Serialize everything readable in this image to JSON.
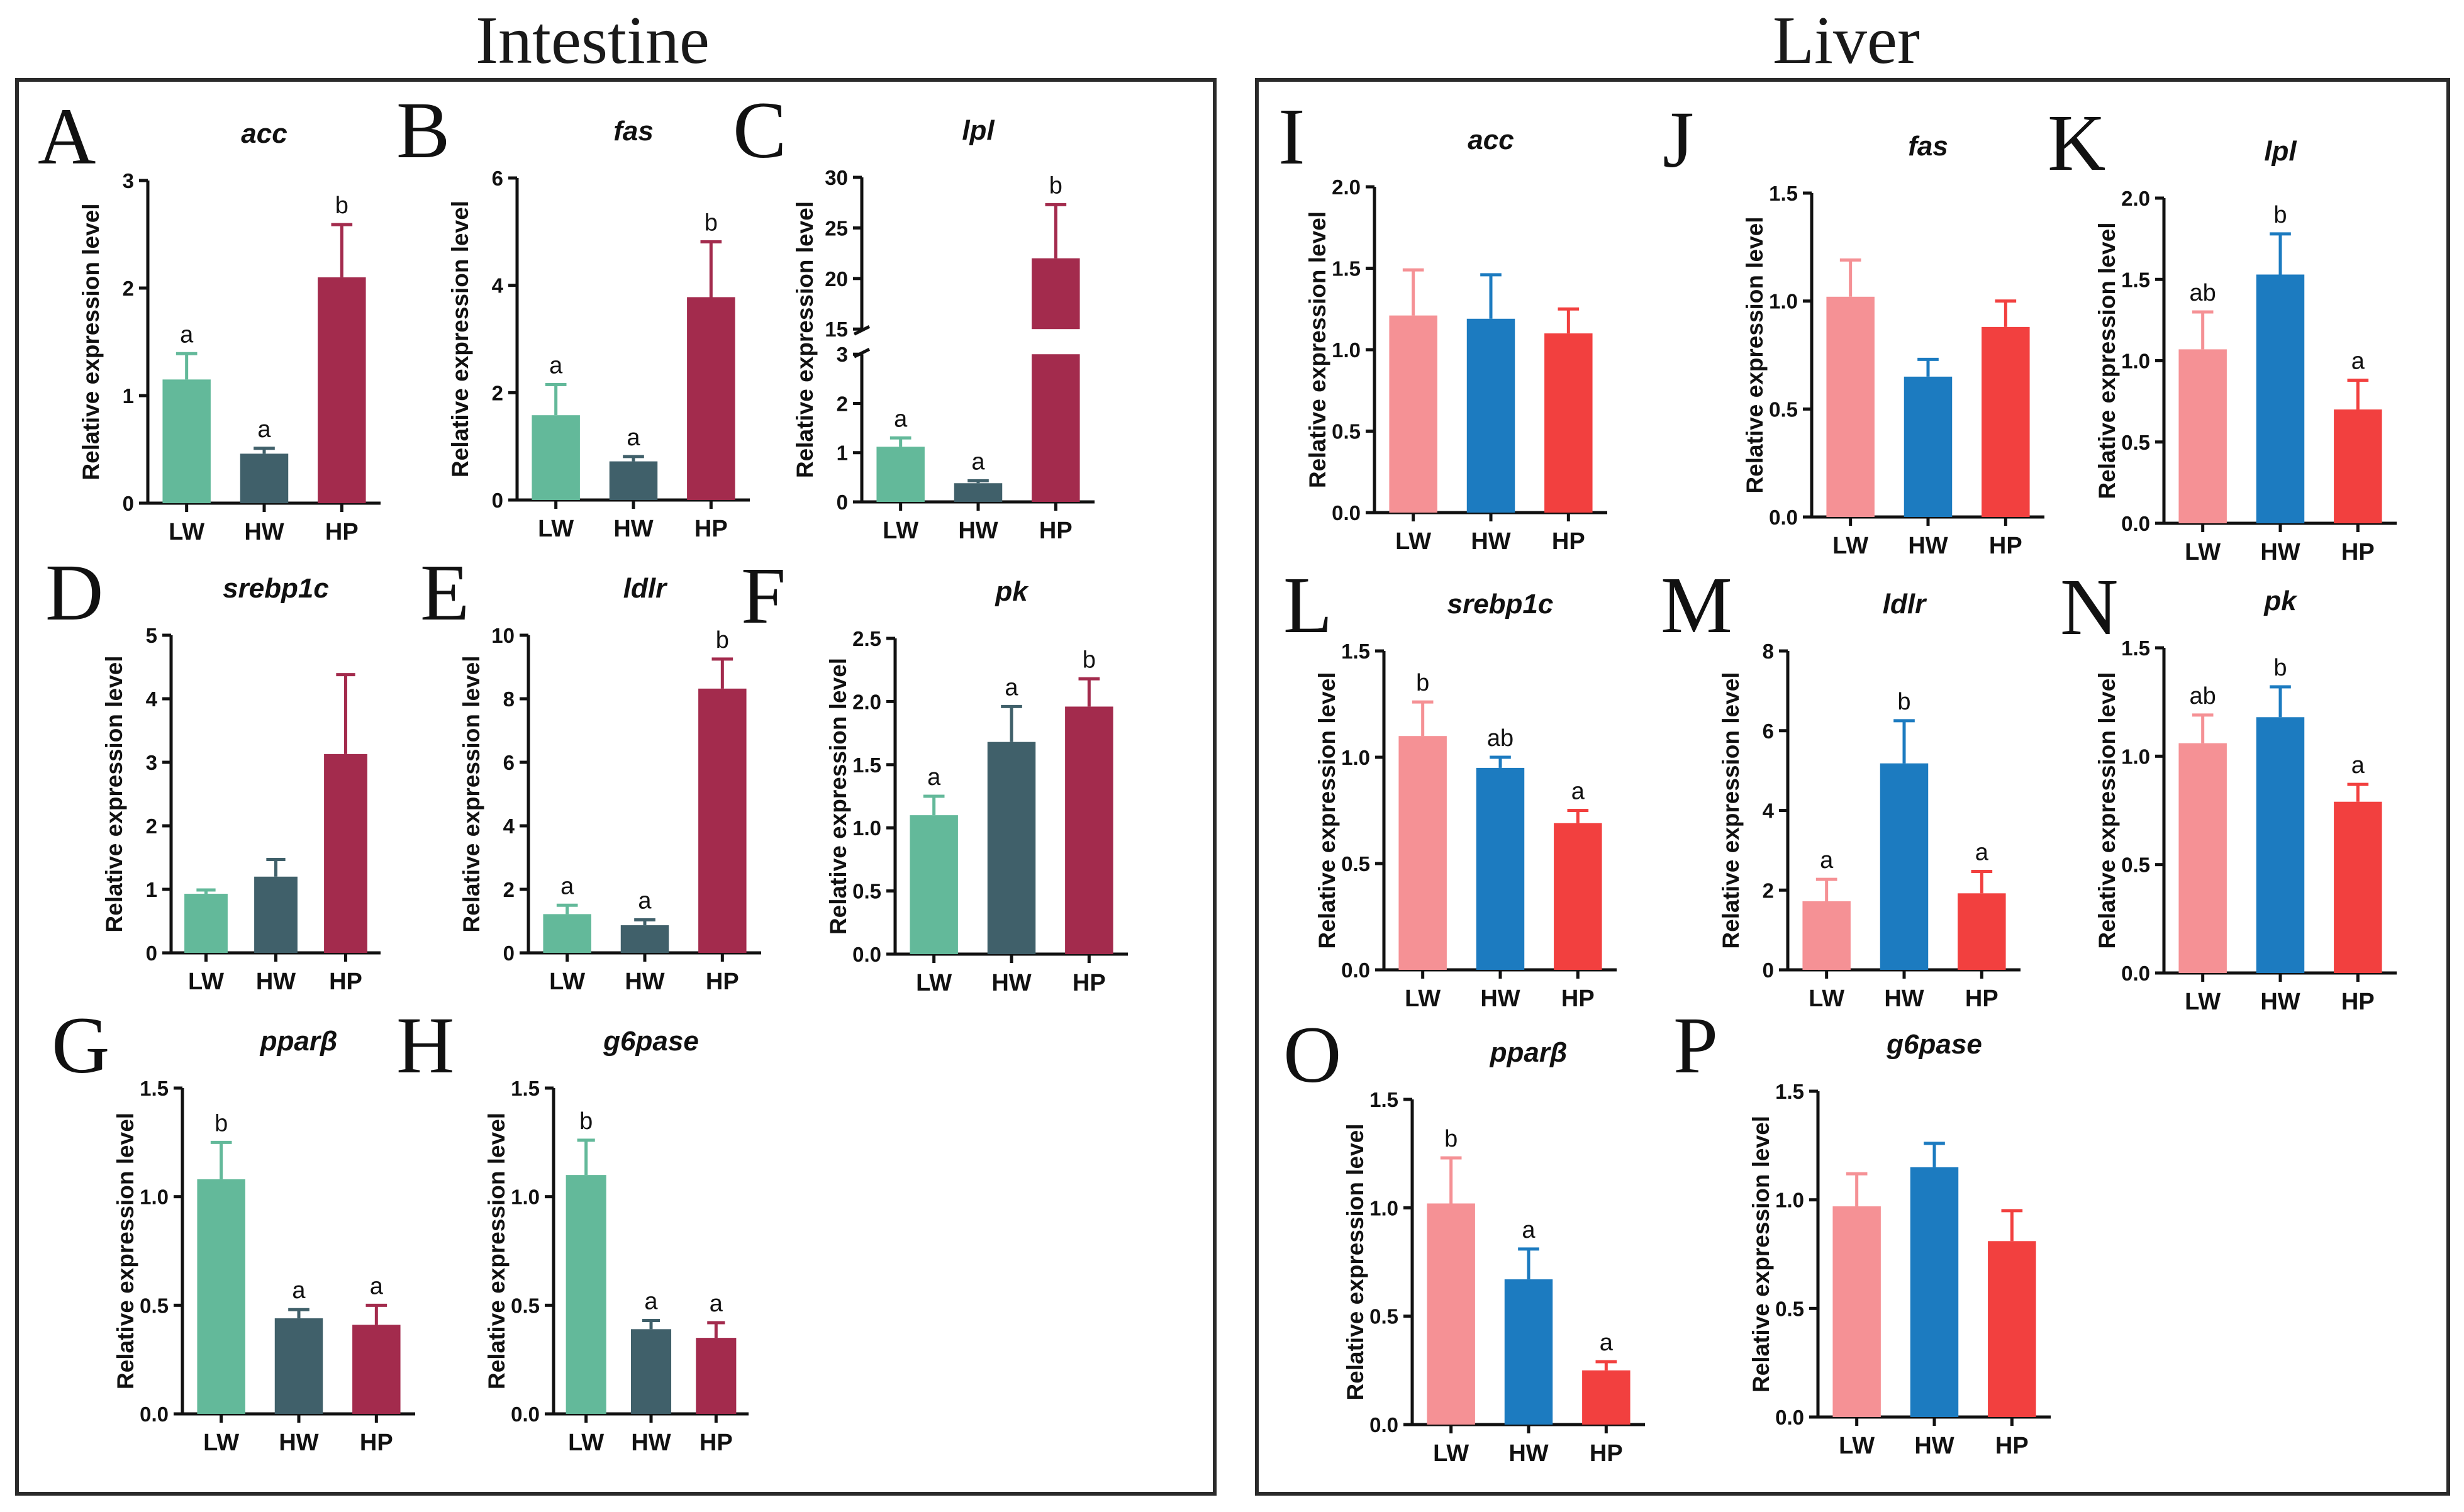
{
  "figure": {
    "sections": [
      {
        "title": "Intestine",
        "colors": [
          "#63b99a",
          "#40606a",
          "#a32b4d"
        ]
      },
      {
        "title": "Liver",
        "colors": [
          "#f59195",
          "#1c7bc0",
          "#f2403f"
        ]
      }
    ]
  },
  "chart_data": [
    {
      "panel": "A",
      "section": "Intestine",
      "type": "bar",
      "title": "acc",
      "ylabel": "Relative expression level",
      "categories": [
        "LW",
        "HW",
        "HP"
      ],
      "values": [
        1.15,
        0.46,
        2.1
      ],
      "errors": [
        0.24,
        0.05,
        0.49
      ],
      "letters": [
        "a",
        "a",
        "b"
      ],
      "ylim": [
        0,
        3
      ],
      "yticks": [
        "0",
        "1",
        "2",
        "3"
      ]
    },
    {
      "panel": "B",
      "section": "Intestine",
      "type": "bar",
      "title": "fas",
      "ylabel": "Relative expression level",
      "categories": [
        "LW",
        "HW",
        "HP"
      ],
      "values": [
        1.58,
        0.72,
        3.78
      ],
      "errors": [
        0.57,
        0.09,
        1.03
      ],
      "letters": [
        "a",
        "a",
        "b"
      ],
      "ylim": [
        0,
        6
      ],
      "yticks": [
        "0",
        "2",
        "4",
        "6"
      ]
    },
    {
      "panel": "C",
      "section": "Intestine",
      "type": "bar",
      "title": "lpl",
      "ylabel": "Relative expression level",
      "categories": [
        "LW",
        "HW",
        "HP"
      ],
      "values": [
        1.12,
        0.38,
        22.0
      ],
      "errors": [
        0.18,
        0.05,
        5.3
      ],
      "letters": [
        "a",
        "a",
        "b"
      ],
      "axis_break": {
        "from": 3,
        "to": 15
      },
      "yticks": [
        "0",
        "1",
        "2",
        "3",
        "15",
        "20",
        "25",
        "30"
      ]
    },
    {
      "panel": "D",
      "section": "Intestine",
      "type": "bar",
      "title": "srebp1c",
      "ylabel": "Relative expression level",
      "categories": [
        "LW",
        "HW",
        "HP"
      ],
      "values": [
        0.93,
        1.2,
        3.13
      ],
      "errors": [
        0.06,
        0.27,
        1.25
      ],
      "letters": [
        "",
        "",
        ""
      ],
      "ylim": [
        0,
        5
      ],
      "yticks": [
        "0",
        "1",
        "2",
        "3",
        "4",
        "5"
      ]
    },
    {
      "panel": "E",
      "section": "Intestine",
      "type": "bar",
      "title": "ldlr",
      "ylabel": "Relative expression level",
      "categories": [
        "LW",
        "HW",
        "HP"
      ],
      "values": [
        1.22,
        0.87,
        8.32
      ],
      "errors": [
        0.28,
        0.17,
        0.93
      ],
      "letters": [
        "a",
        "a",
        "b"
      ],
      "ylim": [
        0,
        10
      ],
      "yticks": [
        "0",
        "2",
        "4",
        "6",
        "8",
        "10"
      ]
    },
    {
      "panel": "F",
      "section": "Intestine",
      "type": "bar",
      "title": "pk",
      "ylabel": "Relative expression level",
      "categories": [
        "LW",
        "HW",
        "HP"
      ],
      "values": [
        1.1,
        1.68,
        1.96
      ],
      "errors": [
        0.15,
        0.28,
        0.22
      ],
      "letters": [
        "a",
        "a",
        "b"
      ],
      "ylim": [
        0,
        2.5
      ],
      "yticks": [
        "0.0",
        "0.5",
        "1.0",
        "1.5",
        "2.0",
        "2.5"
      ]
    },
    {
      "panel": "G",
      "section": "Intestine",
      "type": "bar",
      "title": "pparβ",
      "ylabel": "Relative expression level",
      "categories": [
        "LW",
        "HW",
        "HP"
      ],
      "values": [
        1.08,
        0.44,
        0.41
      ],
      "errors": [
        0.17,
        0.04,
        0.09
      ],
      "letters": [
        "b",
        "a",
        "a"
      ],
      "ylim": [
        0,
        1.5
      ],
      "yticks": [
        "0.0",
        "0.5",
        "1.0",
        "1.5"
      ]
    },
    {
      "panel": "H",
      "section": "Intestine",
      "type": "bar",
      "title": "g6pase",
      "ylabel": "Relative expression level",
      "categories": [
        "LW",
        "HW",
        "HP"
      ],
      "values": [
        1.1,
        0.39,
        0.35
      ],
      "errors": [
        0.16,
        0.04,
        0.07
      ],
      "letters": [
        "b",
        "a",
        "a"
      ],
      "ylim": [
        0,
        1.5
      ],
      "yticks": [
        "0.0",
        "0.5",
        "1.0",
        "1.5"
      ]
    },
    {
      "panel": "I",
      "section": "Liver",
      "type": "bar",
      "title": "acc",
      "ylabel": "Relative expression level",
      "categories": [
        "LW",
        "HW",
        "HP"
      ],
      "values": [
        1.21,
        1.19,
        1.1
      ],
      "errors": [
        0.28,
        0.27,
        0.15
      ],
      "letters": [
        "",
        "",
        ""
      ],
      "ylim": [
        0,
        2.0
      ],
      "yticks": [
        "0.0",
        "0.5",
        "1.0",
        "1.5",
        "2.0"
      ]
    },
    {
      "panel": "J",
      "section": "Liver",
      "type": "bar",
      "title": "fas",
      "ylabel": "Relative expression level",
      "categories": [
        "LW",
        "HW",
        "HP"
      ],
      "values": [
        1.02,
        0.65,
        0.88
      ],
      "errors": [
        0.17,
        0.08,
        0.12
      ],
      "letters": [
        "",
        "",
        ""
      ],
      "ylim": [
        0,
        1.5
      ],
      "yticks": [
        "0.0",
        "0.5",
        "1.0",
        "1.5"
      ]
    },
    {
      "panel": "K",
      "section": "Liver",
      "type": "bar",
      "title": "lpl",
      "ylabel": "Relative expression level",
      "categories": [
        "LW",
        "HW",
        "HP"
      ],
      "values": [
        1.07,
        1.53,
        0.7
      ],
      "errors": [
        0.23,
        0.25,
        0.18
      ],
      "letters": [
        "ab",
        "b",
        "a"
      ],
      "ylim": [
        0,
        2.0
      ],
      "yticks": [
        "0.0",
        "0.5",
        "1.0",
        "1.5",
        "2.0"
      ]
    },
    {
      "panel": "L",
      "section": "Liver",
      "type": "bar",
      "title": "srebp1c",
      "ylabel": "Relative expression level",
      "categories": [
        "LW",
        "HW",
        "HP"
      ],
      "values": [
        1.1,
        0.95,
        0.69
      ],
      "errors": [
        0.16,
        0.05,
        0.06
      ],
      "letters": [
        "b",
        "ab",
        "a"
      ],
      "ylim": [
        0,
        1.5
      ],
      "yticks": [
        "0.0",
        "0.5",
        "1.0",
        "1.5"
      ]
    },
    {
      "panel": "M",
      "section": "Liver",
      "type": "bar",
      "title": "ldlr",
      "ylabel": "Relative expression level",
      "categories": [
        "LW",
        "HW",
        "HP"
      ],
      "values": [
        1.72,
        5.18,
        1.92
      ],
      "errors": [
        0.55,
        1.07,
        0.55
      ],
      "letters": [
        "a",
        "b",
        "a"
      ],
      "ylim": [
        0,
        8
      ],
      "yticks": [
        "0",
        "2",
        "4",
        "6",
        "8"
      ]
    },
    {
      "panel": "N",
      "section": "Liver",
      "type": "bar",
      "title": "pk",
      "ylabel": "Relative expression level",
      "categories": [
        "LW",
        "HW",
        "HP"
      ],
      "values": [
        1.06,
        1.18,
        0.79
      ],
      "errors": [
        0.13,
        0.14,
        0.08
      ],
      "letters": [
        "ab",
        "b",
        "a"
      ],
      "ylim": [
        0,
        1.5
      ],
      "yticks": [
        "0.0",
        "0.5",
        "1.0",
        "1.5"
      ]
    },
    {
      "panel": "O",
      "section": "Liver",
      "type": "bar",
      "title": "pparβ",
      "ylabel": "Relative expression level",
      "categories": [
        "LW",
        "HW",
        "HP"
      ],
      "values": [
        1.02,
        0.67,
        0.25
      ],
      "errors": [
        0.21,
        0.14,
        0.04
      ],
      "letters": [
        "b",
        "a",
        "a"
      ],
      "ylim": [
        0,
        1.5
      ],
      "yticks": [
        "0.0",
        "0.5",
        "1.0",
        "1.5"
      ]
    },
    {
      "panel": "P",
      "section": "Liver",
      "type": "bar",
      "title": "g6pase",
      "ylabel": "Relative expression level",
      "categories": [
        "LW",
        "HW",
        "HP"
      ],
      "values": [
        0.97,
        1.15,
        0.81
      ],
      "errors": [
        0.15,
        0.11,
        0.14
      ],
      "letters": [
        "",
        "",
        ""
      ],
      "ylim": [
        0,
        1.5
      ],
      "yticks": [
        "0.0",
        "0.5",
        "1.0",
        "1.5"
      ]
    }
  ]
}
